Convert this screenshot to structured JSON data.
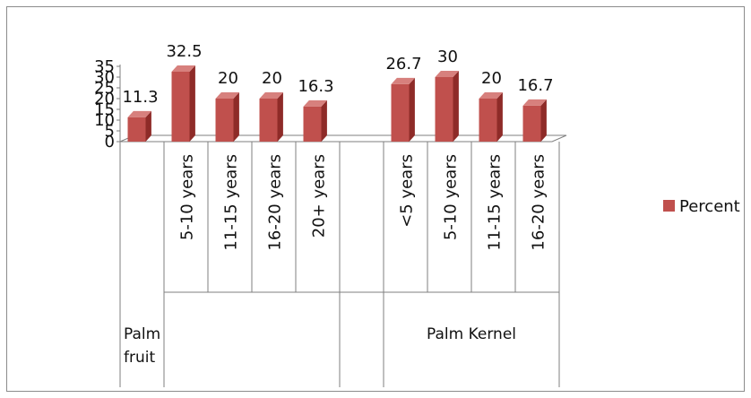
{
  "chart_data": {
    "type": "bar",
    "style": "3d-clustered-column",
    "title": "",
    "xlabel": "",
    "ylabel": "",
    "ylim": [
      0,
      35
    ],
    "yticks": [
      0,
      5,
      10,
      15,
      20,
      25,
      30,
      35
    ],
    "grid": false,
    "legend_position": "right",
    "bar_color": "#c0504d",
    "series": [
      {
        "name": "Percent",
        "values": [
          11.3,
          32.5,
          20,
          20,
          16.3,
          null,
          26.7,
          30,
          20,
          16.7
        ],
        "labels": [
          "11.3",
          "32.5",
          "20",
          "20",
          "16.3",
          "",
          "26.7",
          "30",
          "20",
          "16.7"
        ]
      }
    ],
    "categories": [
      "",
      "5-10 years",
      "11-15 years",
      "16-20 years",
      "20+ years",
      "",
      "<5 years",
      "5-10 years",
      "11-15 years",
      "16-20 years"
    ],
    "groups": [
      {
        "label": "Palm fruit",
        "label_lines": [
          "Palm",
          "fruit"
        ]
      },
      {
        "label": "Palm Kernel",
        "label_lines": [
          "Palm Kernel"
        ]
      }
    ]
  }
}
